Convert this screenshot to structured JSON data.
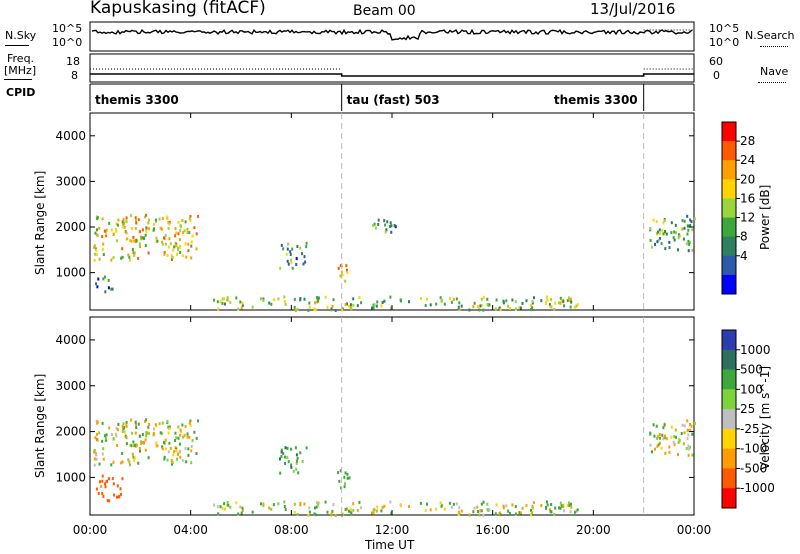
{
  "header": {
    "station": "Kapuskasing (fitACF)",
    "beam": "Beam 00",
    "date": "13/Jul/2016"
  },
  "summary_panel": {
    "left_labels": [
      "N.Sky",
      "Freq.",
      "[MHz]",
      "CPID"
    ],
    "right_labels": [
      "N.Search",
      "Nave"
    ],
    "nsky_ticks": [
      "10^5",
      "10^0"
    ],
    "nsearch_ticks": [
      "10^5",
      "10^0"
    ],
    "freq_ticks": [
      "18",
      "8"
    ],
    "nave_ticks": [
      "60",
      "0"
    ],
    "cpid_segments": [
      {
        "label": "themis 3300",
        "start_hour": 0,
        "end_hour": 10
      },
      {
        "label": "tau (fast) 503",
        "start_hour": 10,
        "end_hour": 22
      },
      {
        "label": "themis 3300",
        "start_hour": 22,
        "end_hour": 24
      }
    ]
  },
  "colorbars": {
    "power": {
      "label": "Power [dB]",
      "ticks": [
        "28",
        "24",
        "20",
        "16",
        "12",
        "8",
        "4"
      ],
      "colors": [
        "#ff0000",
        "#ff5a00",
        "#ffa000",
        "#ffd400",
        "#9cd43c",
        "#3ca83c",
        "#2e8060",
        "#2b5aa8",
        "#0000ff"
      ]
    },
    "velocity": {
      "label": "Velocity [m s^-1]",
      "ticks": [
        "1000",
        "500",
        "100",
        "25",
        "-25",
        "-100",
        "-500",
        "-1000"
      ],
      "colors": [
        "#2b3cb0",
        "#2e7060",
        "#3ca83c",
        "#7cd43c",
        "#bfbfbf",
        "#ffd400",
        "#ff9c00",
        "#ff5a00",
        "#ff0000"
      ]
    }
  },
  "axes": {
    "ylabel": "Slant Range [km]",
    "xlabel": "Time UT",
    "yticks": [
      "4000",
      "3000",
      "2000",
      "1000"
    ],
    "xticks": [
      "00:00",
      "04:00",
      "08:00",
      "12:00",
      "16:00",
      "20:00",
      "00:00"
    ]
  },
  "chart_data": [
    {
      "type": "heatmap",
      "title": "Power [dB]",
      "xlabel": "Time UT",
      "ylabel": "Slant Range [km]",
      "x_range_hours": [
        0,
        24
      ],
      "ylim": [
        180,
        4500
      ],
      "colorbar_range_db": [
        0,
        30
      ],
      "vertical_dashed_lines_hours": [
        10,
        22
      ],
      "echo_regions": [
        {
          "t_start": 0.1,
          "t_end": 4.3,
          "range_start": 1300,
          "range_end": 2300,
          "power_db": 18
        },
        {
          "t_start": 0.1,
          "t_end": 1.0,
          "range_start": 600,
          "range_end": 1000,
          "power_db": 8
        },
        {
          "t_start": 7.5,
          "t_end": 8.6,
          "range_start": 1100,
          "range_end": 1700,
          "power_db": 10
        },
        {
          "t_start": 9.8,
          "t_end": 10.4,
          "range_start": 800,
          "range_end": 1200,
          "power_db": 20
        },
        {
          "t_start": 11.2,
          "t_end": 12.3,
          "range_start": 1900,
          "range_end": 2200,
          "power_db": 8
        },
        {
          "t_start": 4.8,
          "t_end": 19.5,
          "range_start": 200,
          "range_end": 500,
          "power_db": 14
        },
        {
          "t_start": 22.2,
          "t_end": 24,
          "range_start": 1500,
          "range_end": 2300,
          "power_db": 12
        }
      ]
    },
    {
      "type": "heatmap",
      "title": "Velocity [m s^-1]",
      "xlabel": "Time UT",
      "ylabel": "Slant Range [km]",
      "x_range_hours": [
        0,
        24
      ],
      "ylim": [
        180,
        4500
      ],
      "colorbar_range_ms": [
        -1000,
        1000
      ],
      "vertical_dashed_lines_hours": [
        10,
        22
      ],
      "echo_regions": [
        {
          "t_start": 0.1,
          "t_end": 4.3,
          "range_start": 1300,
          "range_end": 2300,
          "velocity_ms": 0
        },
        {
          "t_start": 0.1,
          "t_end": 1.3,
          "range_start": 500,
          "range_end": 1100,
          "velocity_ms": -700
        },
        {
          "t_start": 7.5,
          "t_end": 8.6,
          "range_start": 1100,
          "range_end": 1700,
          "velocity_ms": 300
        },
        {
          "t_start": 9.8,
          "t_end": 10.4,
          "range_start": 800,
          "range_end": 1200,
          "velocity_ms": 150
        },
        {
          "t_start": 4.8,
          "t_end": 19.5,
          "range_start": 200,
          "range_end": 500,
          "velocity_ms": 60
        },
        {
          "t_start": 22.2,
          "t_end": 24,
          "range_start": 1500,
          "range_end": 2300,
          "velocity_ms": 0
        }
      ]
    }
  ]
}
